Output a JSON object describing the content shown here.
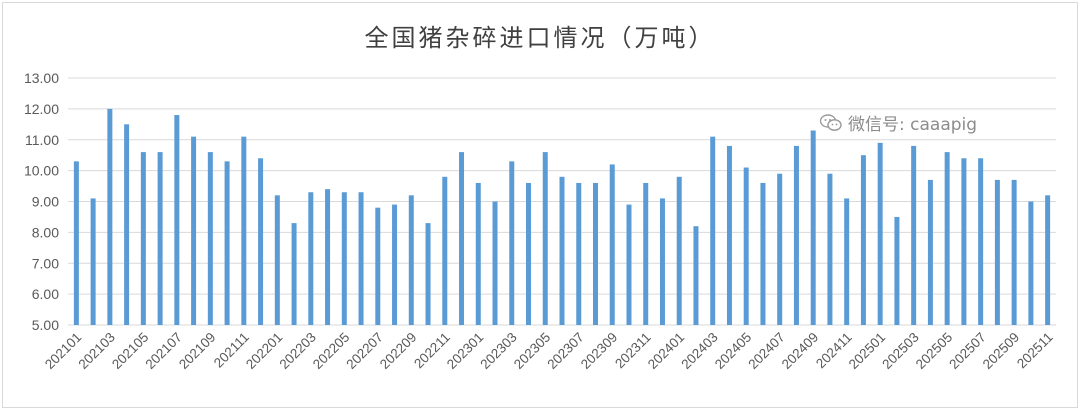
{
  "chart_data": {
    "type": "bar",
    "title": "全国猪杂碎进口情况（万吨）",
    "ylim": [
      5,
      13
    ],
    "yticks": [
      "5.00",
      "6.00",
      "7.00",
      "8.00",
      "9.00",
      "10.00",
      "11.00",
      "12.00",
      "13.00"
    ],
    "grid": true,
    "bar_color": "#5b9bd5",
    "categories": [
      "202101",
      "202102",
      "202103",
      "202104",
      "202105",
      "202106",
      "202107",
      "202108",
      "202109",
      "202110",
      "202111",
      "202112",
      "202201",
      "202202",
      "202203",
      "202204",
      "202205",
      "202206",
      "202207",
      "202208",
      "202209",
      "202210",
      "202211",
      "202212",
      "202301",
      "202302",
      "202303",
      "202304",
      "202305",
      "202306",
      "202307",
      "202308",
      "202309",
      "202310",
      "202311",
      "202312",
      "202401",
      "202402",
      "202403",
      "202404",
      "202405",
      "202406",
      "202407",
      "202408",
      "202409",
      "202410",
      "202411",
      "202412",
      "202501",
      "202502",
      "202503",
      "202504",
      "202505",
      "202506",
      "202507",
      "202508",
      "202509",
      "202510",
      "202511"
    ],
    "tick_labels": [
      "202101",
      "202103",
      "202105",
      "202107",
      "202109",
      "202111",
      "202201",
      "202203",
      "202205",
      "202207",
      "202209",
      "202211",
      "202301",
      "202303",
      "202305",
      "202307",
      "202309",
      "202311",
      "202401",
      "202403",
      "202405",
      "202407",
      "202409",
      "202411",
      "202501",
      "202503",
      "202505",
      "202507",
      "202509",
      "202511"
    ],
    "values": [
      10.3,
      9.1,
      12.0,
      11.5,
      10.6,
      10.6,
      11.8,
      11.1,
      10.6,
      10.3,
      11.1,
      10.4,
      9.2,
      8.3,
      9.3,
      9.4,
      9.3,
      9.3,
      8.8,
      8.9,
      9.2,
      8.3,
      9.8,
      10.6,
      9.6,
      9.0,
      10.3,
      9.6,
      10.6,
      9.8,
      9.6,
      9.6,
      10.2,
      8.9,
      9.6,
      9.1,
      9.8,
      8.2,
      11.1,
      10.8,
      10.1,
      9.6,
      9.9,
      10.8,
      11.3,
      9.9,
      9.1,
      10.5,
      10.9,
      8.5,
      10.8,
      9.7,
      10.6,
      10.4,
      10.4,
      9.7,
      9.7,
      9.0,
      9.2
    ]
  },
  "watermark": {
    "text": "微信号: caaapig",
    "icon": "wechat-icon"
  }
}
